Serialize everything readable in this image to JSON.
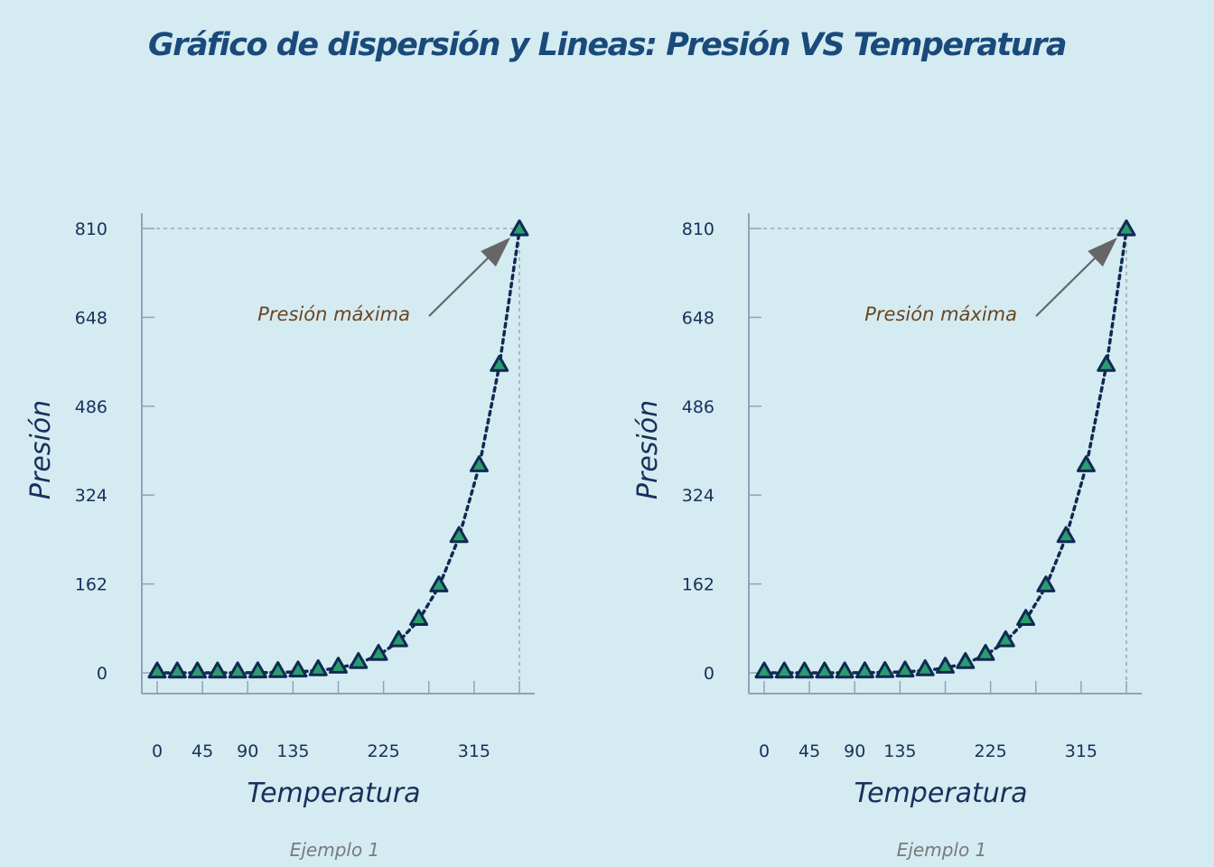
{
  "title": "Gráfico de dispersión y Lineas: Presión VS Temperatura",
  "colors": {
    "background": "#d4ebf2",
    "title": "#1a4a7a",
    "axis": "#8fa3b8",
    "text": "#1a2f5a",
    "marker_fill": "#2a9d6e",
    "marker_edge": "#0f2a52",
    "line": "#0f2a52",
    "refline": "#a8a8a8",
    "arrow": "#666666",
    "annotation": "#6b4620",
    "caption": "#7a7a7a"
  },
  "chart_data": [
    {
      "type": "line",
      "marker": "triangle",
      "line_style": "dotted",
      "xlabel": "Temperatura",
      "ylabel": "Presión",
      "caption": "Ejemplo 1",
      "xticks": [
        0,
        45,
        90,
        135,
        225,
        315
      ],
      "x_minor_ticks": [
        0,
        45,
        90,
        135,
        180,
        225,
        270,
        315,
        360
      ],
      "yticks": [
        0,
        162,
        324,
        486,
        648,
        810
      ],
      "xlim": [
        -15,
        375
      ],
      "ylim": [
        -37,
        832
      ],
      "annotation": {
        "text": "Presión máxima",
        "x": 360,
        "y": 810
      },
      "reference_lines": {
        "x": 360,
        "y": 810
      },
      "series": [
        {
          "x": [
            0,
            20,
            40,
            60,
            80,
            100,
            120,
            140,
            160,
            180,
            200,
            220,
            240,
            260,
            280,
            300,
            320,
            340,
            360
          ],
          "y": [
            0.0002,
            0.0012,
            0.006,
            0.03,
            0.09,
            0.27,
            0.75,
            1.85,
            4.2,
            8.8,
            17.3,
            32.1,
            57,
            96,
            157,
            247,
            376,
            559,
            806
          ]
        }
      ]
    },
    {
      "type": "line",
      "marker": "triangle",
      "line_style": "dotted",
      "xlabel": "Temperatura",
      "ylabel": "Presión",
      "caption": "Ejemplo 1",
      "xticks": [
        0,
        45,
        90,
        135,
        225,
        315
      ],
      "x_minor_ticks": [
        0,
        45,
        90,
        135,
        180,
        225,
        270,
        315,
        360
      ],
      "yticks": [
        0,
        162,
        324,
        486,
        648,
        810
      ],
      "xlim": [
        -15,
        375
      ],
      "ylim": [
        -37,
        832
      ],
      "annotation": {
        "text": "Presión máxima",
        "x": 360,
        "y": 810
      },
      "reference_lines": {
        "x": 360,
        "y": 810
      },
      "series": [
        {
          "x": [
            0,
            20,
            40,
            60,
            80,
            100,
            120,
            140,
            160,
            180,
            200,
            220,
            240,
            260,
            280,
            300,
            320,
            340,
            360
          ],
          "y": [
            0.0002,
            0.0012,
            0.006,
            0.03,
            0.09,
            0.27,
            0.75,
            1.85,
            4.2,
            8.8,
            17.3,
            32.1,
            57,
            96,
            157,
            247,
            376,
            559,
            806
          ]
        }
      ]
    }
  ]
}
